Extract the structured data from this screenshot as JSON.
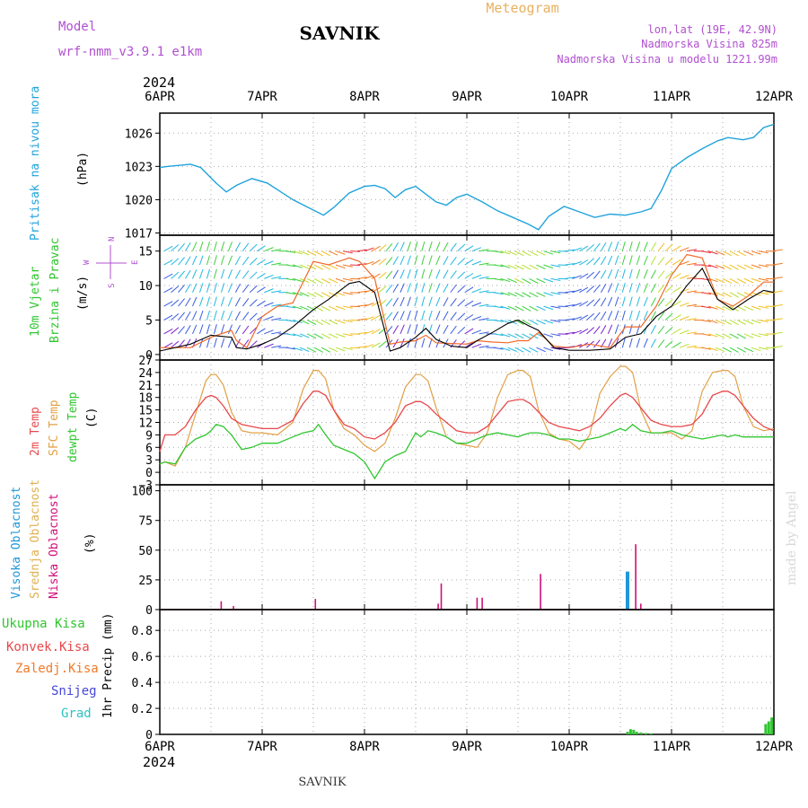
{
  "header": {
    "model_label": "Model",
    "model_name": "wrf-nmm_v3.9.1  e1km",
    "station": "SAVNIK",
    "chart_title": "Meteogram",
    "lonlat": "lon,lat (19E, 42.9N)",
    "elevation": "Nadmorska Visina 825m",
    "model_elevation": "Nadmorska Visina u modelu 1221.99m",
    "footer_station": "SAVNIK",
    "credit": "made by Angel"
  },
  "time_axis": {
    "year": "2024",
    "labels": [
      "6APR",
      "7APR",
      "8APR",
      "9APR",
      "10APR",
      "11APR",
      "12APR"
    ]
  },
  "colors": {
    "pressure": "#1fa3dc",
    "temp2m": "#e8474a",
    "sfc_temp": "#e2a046",
    "dewpoint": "#2fc62f",
    "wind_speed": "#000000",
    "wind_gust": "#f06a2a",
    "high_cloud": "#1f97d8",
    "mid_cloud": "#e0b050",
    "low_cloud": "#d0107a",
    "total_rain": "#2fc62f",
    "conv_rain": "#e8474a",
    "freezing_rain": "#f07a2a",
    "snow": "#4646d8",
    "hail": "#2cc3c3",
    "purple_text": "#b050d0",
    "orange_text": "#e8b060"
  },
  "chart_data": [
    {
      "type": "line",
      "panel": "pressure",
      "ylabel_main": "Pritisak na nivou mora",
      "ylabel_unit": "(hPa)",
      "yticks": [
        1017,
        1020,
        1023,
        1026
      ],
      "ylim": [
        1016.8,
        1027.8
      ],
      "x_days": [
        0,
        0.08,
        0.2,
        0.3,
        0.4,
        0.55,
        0.65,
        0.75,
        0.9,
        1.05,
        1.15,
        1.3,
        1.45,
        1.6,
        1.7,
        1.85,
        2.0,
        2.1,
        2.2,
        2.3,
        2.4,
        2.5,
        2.6,
        2.7,
        2.8,
        2.9,
        3.0,
        3.15,
        3.3,
        3.45,
        3.6,
        3.7,
        3.8,
        3.95,
        4.1,
        4.25,
        4.4,
        4.55,
        4.7,
        4.8,
        4.9,
        5.0,
        5.15,
        5.3,
        5.45,
        5.55,
        5.7,
        5.8,
        5.9,
        6.0
      ],
      "values": [
        1022.9,
        1023.0,
        1023.1,
        1023.2,
        1022.9,
        1021.5,
        1020.7,
        1021.3,
        1021.9,
        1021.5,
        1020.9,
        1020.0,
        1019.3,
        1018.6,
        1019.3,
        1020.6,
        1021.2,
        1021.3,
        1021.0,
        1020.2,
        1020.9,
        1021.2,
        1020.5,
        1019.8,
        1019.5,
        1020.2,
        1020.5,
        1019.8,
        1019.0,
        1018.4,
        1017.8,
        1017.3,
        1018.5,
        1019.4,
        1018.9,
        1018.4,
        1018.7,
        1018.6,
        1018.9,
        1019.2,
        1020.8,
        1022.8,
        1023.8,
        1024.6,
        1025.3,
        1025.6,
        1025.4,
        1025.6,
        1026.5,
        1026.8
      ]
    },
    {
      "type": "line",
      "panel": "wind",
      "ylabel_main": "10m Vjetar",
      "ylabel_sub": "Brzina i Pravac",
      "ylabel_unit": "(m/s)",
      "compass": [
        "N",
        "E",
        "S",
        "W"
      ],
      "yticks": [
        0,
        5,
        10,
        15
      ],
      "ylim": [
        -0.8,
        17.3
      ],
      "series": [
        {
          "name": "speed",
          "x_days": [
            0,
            0.3,
            0.5,
            0.7,
            0.75,
            0.85,
            1.0,
            1.15,
            1.3,
            1.5,
            1.65,
            1.85,
            1.95,
            2.1,
            2.25,
            2.35,
            2.5,
            2.6,
            2.7,
            2.85,
            3.0,
            3.1,
            3.25,
            3.4,
            3.5,
            3.6,
            3.7,
            3.85,
            4.0,
            4.2,
            4.4,
            4.55,
            4.7,
            4.85,
            5.0,
            5.15,
            5.3,
            5.45,
            5.6,
            5.75,
            5.9,
            6.0
          ],
          "values": [
            0.5,
            1.5,
            2.8,
            2.5,
            1.0,
            0.8,
            1.5,
            2.5,
            4.0,
            6.5,
            8.0,
            10.3,
            10.6,
            9.0,
            0.5,
            1.0,
            2.5,
            3.8,
            2.2,
            1.2,
            1.0,
            2.0,
            3.2,
            4.5,
            5.0,
            4.2,
            3.5,
            1.0,
            0.6,
            0.6,
            0.8,
            2.5,
            3.0,
            5.5,
            7.0,
            10.0,
            12.5,
            8.0,
            6.5,
            8.0,
            9.3,
            9.0
          ]
        },
        {
          "name": "gust",
          "x_days": [
            0,
            0.3,
            0.5,
            0.7,
            0.75,
            0.85,
            1.0,
            1.15,
            1.3,
            1.5,
            1.65,
            1.85,
            1.95,
            2.1,
            2.25,
            2.35,
            2.5,
            2.6,
            2.7,
            2.85,
            3.0,
            3.1,
            3.25,
            3.4,
            3.5,
            3.6,
            3.7,
            3.85,
            4.0,
            4.2,
            4.4,
            4.55,
            4.7,
            4.85,
            5.0,
            5.15,
            5.3,
            5.45,
            5.6,
            5.75,
            5.9,
            6.0
          ],
          "values": [
            1.0,
            1.0,
            2.5,
            3.5,
            2.0,
            1.0,
            5.5,
            7.0,
            7.5,
            13.5,
            13.0,
            14.0,
            13.5,
            11.0,
            1.5,
            1.8,
            2.0,
            2.8,
            1.7,
            1.6,
            1.5,
            2.0,
            1.8,
            1.7,
            2.0,
            2.0,
            3.2,
            1.2,
            1.0,
            1.5,
            1.0,
            4.0,
            4.0,
            7.0,
            11.5,
            14.5,
            14.0,
            8.0,
            7.0,
            8.5,
            10.5,
            10.5
          ]
        }
      ]
    },
    {
      "type": "line",
      "panel": "temperature",
      "ylabel_lines": [
        "2m Temp",
        "SFC Temp",
        "dewpt Temp"
      ],
      "ylabel_unit": "(C)",
      "yticks": [
        -3,
        0,
        3,
        6,
        9,
        12,
        15,
        18,
        21,
        24,
        27
      ],
      "ylim": [
        -3,
        27
      ],
      "x_days": [
        0,
        0.05,
        0.15,
        0.25,
        0.35,
        0.45,
        0.5,
        0.55,
        0.62,
        0.7,
        0.8,
        0.9,
        1.0,
        1.15,
        1.3,
        1.4,
        1.5,
        1.55,
        1.62,
        1.7,
        1.8,
        1.9,
        2.0,
        2.1,
        2.2,
        2.3,
        2.4,
        2.5,
        2.55,
        2.62,
        2.7,
        2.8,
        2.9,
        3.0,
        3.1,
        3.2,
        3.3,
        3.4,
        3.5,
        3.55,
        3.62,
        3.7,
        3.8,
        3.9,
        4.0,
        4.1,
        4.2,
        4.3,
        4.4,
        4.5,
        4.55,
        4.62,
        4.7,
        4.8,
        4.9,
        5.0,
        5.1,
        5.2,
        5.3,
        5.4,
        5.5,
        5.55,
        5.62,
        5.7,
        5.8,
        5.9,
        6.0
      ],
      "series": [
        {
          "name": "2m",
          "values": [
            5.0,
            9.0,
            9.0,
            11.0,
            15.0,
            18.0,
            18.5,
            18.0,
            16.0,
            13.0,
            11.5,
            11.0,
            10.5,
            10.5,
            12.5,
            16.5,
            19.5,
            19.5,
            18.5,
            15.0,
            11.5,
            10.5,
            8.5,
            8.0,
            9.5,
            12.0,
            16.0,
            17.0,
            17.0,
            16.0,
            14.0,
            12.0,
            10.0,
            9.5,
            9.5,
            11.0,
            14.0,
            17.0,
            17.5,
            17.5,
            16.5,
            14.5,
            12.0,
            11.0,
            10.5,
            10.0,
            11.0,
            13.0,
            16.0,
            18.5,
            19.0,
            18.0,
            15.5,
            12.5,
            11.5,
            11.0,
            11.0,
            11.5,
            14.0,
            18.5,
            19.5,
            19.5,
            18.5,
            16.0,
            13.0,
            11.0,
            10.0
          ]
        },
        {
          "name": "sfc",
          "values": [
            2.0,
            2.5,
            1.5,
            6.0,
            14.0,
            22.0,
            23.5,
            23.5,
            21.0,
            14.5,
            10.0,
            9.5,
            9.5,
            9.0,
            12.0,
            20.0,
            24.5,
            24.5,
            22.5,
            15.0,
            10.5,
            9.0,
            6.5,
            5.0,
            7.0,
            13.0,
            20.5,
            23.5,
            23.5,
            22.0,
            15.5,
            8.5,
            7.0,
            6.5,
            6.0,
            9.5,
            18.0,
            23.5,
            24.5,
            24.5,
            23.0,
            15.0,
            9.5,
            8.0,
            7.5,
            5.5,
            9.0,
            19.0,
            23.0,
            25.5,
            25.5,
            24.0,
            15.0,
            9.5,
            9.5,
            9.5,
            8.0,
            10.0,
            19.5,
            24.0,
            24.5,
            24.5,
            23.0,
            16.0,
            11.0,
            10.0,
            10.5
          ]
        },
        {
          "name": "dewpoint",
          "values": [
            2.0,
            2.5,
            2.0,
            6.0,
            8.0,
            9.0,
            10.0,
            11.5,
            11.0,
            9.0,
            5.5,
            6.0,
            7.0,
            7.0,
            8.5,
            9.5,
            10.0,
            11.5,
            9.0,
            6.5,
            5.5,
            4.5,
            2.5,
            -1.5,
            2.5,
            4.0,
            5.0,
            9.5,
            8.5,
            10.0,
            9.5,
            8.5,
            7.0,
            7.0,
            8.0,
            9.0,
            9.5,
            9.0,
            8.5,
            9.0,
            9.5,
            9.5,
            9.0,
            8.0,
            8.0,
            7.5,
            8.0,
            8.5,
            9.5,
            10.5,
            10.0,
            11.5,
            10.0,
            9.5,
            9.5,
            10.0,
            9.0,
            8.5,
            8.0,
            8.5,
            9.0,
            8.5,
            9.0,
            8.5,
            8.5,
            8.5,
            8.5
          ]
        }
      ]
    },
    {
      "type": "bar",
      "panel": "clouds",
      "ylabel_lines": [
        "Visoka Oblacnost",
        "Srednja Oblacnost",
        "Niska Oblacnost"
      ],
      "ylabel_unit": "(%)",
      "yticks": [
        0,
        25,
        50,
        75,
        100
      ],
      "ylim": [
        0,
        105
      ],
      "series": [
        {
          "name": "low",
          "x_days": [
            0.6,
            0.72,
            1.52,
            2.72,
            2.75,
            3.1,
            3.15,
            3.72,
            4.65,
            4.7
          ],
          "values": [
            7,
            3,
            9,
            5,
            22,
            10,
            10,
            30,
            55,
            5
          ]
        },
        {
          "name": "high",
          "x_days": [
            4.57
          ],
          "values": [
            32
          ]
        }
      ]
    },
    {
      "type": "bar",
      "panel": "precip",
      "ylabel_main": "1hr Precip (mm)",
      "legend": [
        "Ukupna Kisa",
        "Konvek.Kisa",
        "Zaledj.Kisa",
        "Snijeg",
        "Grad"
      ],
      "yticks": [
        0,
        0.2,
        0.4,
        0.6,
        0.8
      ],
      "ylim": [
        0,
        0.96
      ],
      "x_days": [
        4.57,
        4.6,
        4.63,
        4.66,
        4.7,
        4.75,
        4.8,
        5.92,
        5.95,
        5.98
      ],
      "values": [
        0.02,
        0.04,
        0.035,
        0.02,
        0.015,
        0.01,
        0.008,
        0.08,
        0.1,
        0.13
      ]
    }
  ]
}
